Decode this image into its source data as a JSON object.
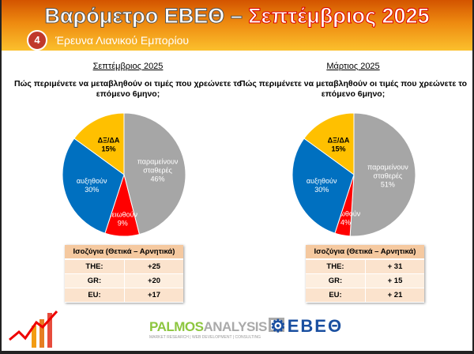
{
  "header": {
    "title_part1": "Βαρόμετρο ΕΒΕΘ – ",
    "title_part2": "Σεπτέμβριος 2025",
    "section_number": "4",
    "subtitle": "Έρευνα Λιανικού Εμπορίου"
  },
  "chart_data": [
    {
      "type": "pie",
      "title": "Σεπτέμβριος 2025",
      "question": "Πώς περιμένετε να μεταβληθούν οι τιμές που χρεώνετε το επόμενο 6μηνο;",
      "slices": [
        {
          "label": "παραμείνουν σταθερές",
          "value": 46,
          "text": "46%",
          "color": "#a6a6a6"
        },
        {
          "label": "μειωθούν",
          "value": 9,
          "text": "9%",
          "color": "#ff0000"
        },
        {
          "label": "αυξηθούν",
          "value": 30,
          "text": "30%",
          "color": "#0070c0"
        },
        {
          "label": "ΔΞ/ΔΑ",
          "value": 15,
          "text": "15%",
          "color": "#ffc000"
        }
      ]
    },
    {
      "type": "pie",
      "title": "Μάρτιος 2025",
      "question": "Πώς περιμένετε να μεταβληθούν οι τιμές που χρεώνετε το επόμενο 6μηνο;",
      "slices": [
        {
          "label": "παραμείνουν σταθερές",
          "value": 51,
          "text": "51%",
          "color": "#a6a6a6"
        },
        {
          "label": "μειωθούν",
          "value": 4,
          "text": "4%",
          "color": "#ff0000"
        },
        {
          "label": "αυξηθούν",
          "value": 30,
          "text": "30%",
          "color": "#0070c0"
        },
        {
          "label": "ΔΞ/ΔΑ",
          "value": 15,
          "text": "15%",
          "color": "#ffc000"
        }
      ]
    }
  ],
  "tables": [
    {
      "header": "Ισοζύγια (Θετικά – Αρνητικά)",
      "rows": [
        {
          "k": "THE:",
          "v": "+25"
        },
        {
          "k": "GR:",
          "v": "+20"
        },
        {
          "k": "EU:",
          "v": "+17"
        }
      ]
    },
    {
      "header": "Ισοζύγια (Θετικά – Αρνητικά)",
      "rows": [
        {
          "k": "THE:",
          "v": "+ 31"
        },
        {
          "k": "GR:",
          "v": "+ 15"
        },
        {
          "k": "EU:",
          "v": "+ 21"
        }
      ]
    }
  ],
  "logos": {
    "palmos_a": "PALMOS",
    "palmos_b": "ANALYSIS",
    "palmos_tag": "MARKET RESEARCH | WEB DEVELOPMENT | CONSULTING",
    "ebeth": "ΕΒΕΘ"
  }
}
